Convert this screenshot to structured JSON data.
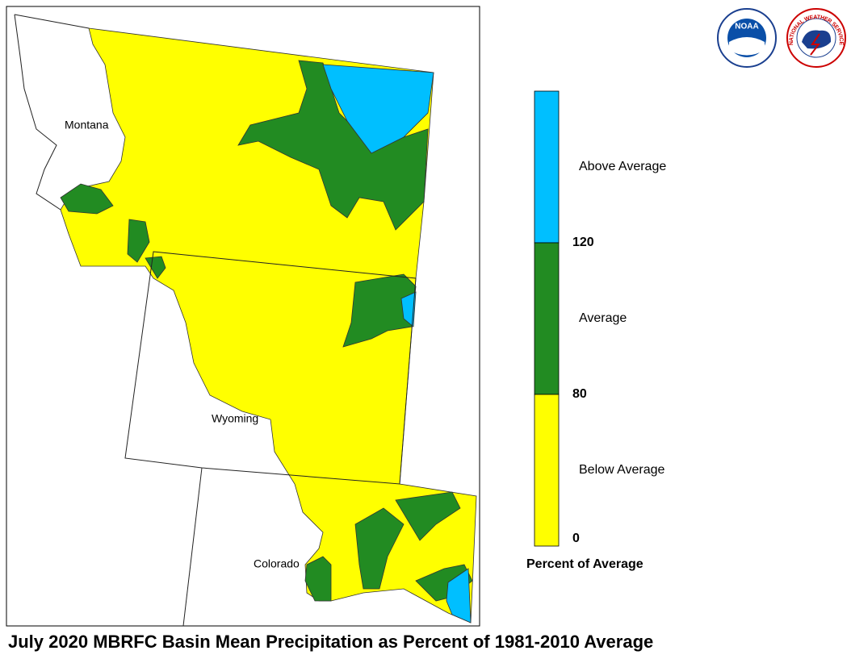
{
  "title": "July 2020 MBRFC Basin Mean Precipitation as Percent of 1981-2010 Average",
  "map": {
    "state_labels": [
      "Montana",
      "Wyoming",
      "Colorado"
    ]
  },
  "legend": {
    "title": "Percent of Average",
    "classes": [
      {
        "label": "Above Average",
        "color": "#00bfff"
      },
      {
        "label": "Average",
        "color": "#228b22"
      },
      {
        "label": "Below Average",
        "color": "#ffff00"
      }
    ],
    "ticks": [
      120,
      80,
      0
    ]
  },
  "logos": {
    "noaa": "NOAA",
    "nws": "NATIONAL WEATHER SERVICE"
  }
}
